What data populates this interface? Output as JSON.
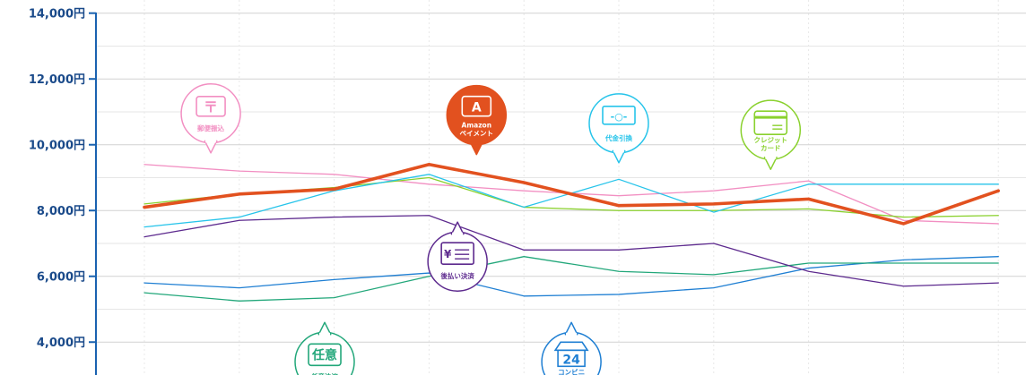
{
  "colors": {
    "axis": "#1a62b0",
    "tick_text": "#1a4a8a",
    "grid_h": "#d8d8d8",
    "grid_v": "#e8e8e8"
  },
  "chart_data": {
    "type": "line",
    "title": "",
    "xlabel": "",
    "ylabel": "",
    "ylim": [
      3000,
      14400
    ],
    "y_ticks": [
      {
        "value": 14000,
        "label": "14,000円"
      },
      {
        "value": 12000,
        "label": "12,000円"
      },
      {
        "value": 10000,
        "label": "10,000円"
      },
      {
        "value": 8000,
        "label": "8,000円"
      },
      {
        "value": 6000,
        "label": "6,000円"
      },
      {
        "value": 4000,
        "label": "4,000円"
      }
    ],
    "x": [
      1,
      2,
      3,
      4,
      5,
      6,
      7,
      8,
      9,
      10
    ],
    "grid": true,
    "series": [
      {
        "name": "郵便振込",
        "color": "#f28fc2",
        "width": 1.3,
        "values": [
          9400,
          9200,
          9100,
          8800,
          8600,
          8450,
          8600,
          8900,
          7700,
          7600
        ],
        "label_lines": [
          "郵便振込"
        ],
        "icon": "postal-mark-icon",
        "bubble_anchor": 1.7,
        "bubble_value": 10950
      },
      {
        "name": "クレジットカード",
        "color": "#8ad12e",
        "width": 1.3,
        "values": [
          8200,
          8500,
          8700,
          9000,
          8100,
          8000,
          8000,
          8050,
          7800,
          7850
        ],
        "label_lines": [
          "クレジット",
          "カード"
        ],
        "icon": "credit-card-icon",
        "bubble_anchor": 7.6,
        "bubble_value": 10450
      },
      {
        "name": "コンビニ支払い",
        "color": "#1f7fd3",
        "width": 1.3,
        "values": [
          5800,
          5650,
          5900,
          6100,
          5400,
          5450,
          5650,
          6250,
          6500,
          6600
        ],
        "label_lines": [
          "コンビニ",
          "支払い"
        ],
        "icon": "convenience-store-24-icon",
        "bubble_anchor": 5.5,
        "bubble_value": 3400
      },
      {
        "name": "代金引換",
        "color": "#27c4ea",
        "width": 1.3,
        "values": [
          7500,
          7800,
          8600,
          9100,
          8100,
          8950,
          7950,
          8800,
          8800,
          8800
        ],
        "label_lines": [
          "代金引換"
        ],
        "icon": "cash-on-delivery-icon",
        "bubble_anchor": 6.0,
        "bubble_value": 10650
      },
      {
        "name": "任意決済",
        "color": "#22a77a",
        "width": 1.3,
        "values": [
          5500,
          5250,
          5350,
          6000,
          6600,
          6150,
          6050,
          6400,
          6400,
          6400
        ],
        "label_lines": [
          "任意決済"
        ],
        "icon": "nin-i-icon",
        "bubble_anchor": 2.9,
        "bubble_value": 3400
      },
      {
        "name": "後払い決済",
        "color": "#5d2a8e",
        "width": 1.3,
        "values": [
          7200,
          7700,
          7800,
          7850,
          6800,
          6800,
          7000,
          6150,
          5700,
          5800
        ],
        "label_lines": [
          "後払い決済"
        ],
        "icon": "invoice-icon",
        "bubble_anchor": 4.3,
        "bubble_value": 6450
      },
      {
        "name": "Amazonペイメント",
        "color": "#e2511f",
        "width": 3.6,
        "values": [
          8100,
          8500,
          8650,
          9400,
          8850,
          8150,
          8200,
          8350,
          7600,
          8600
        ],
        "label_lines": [
          "Amazon",
          "ペイメント"
        ],
        "icon": "amazon-a-icon",
        "bubble_anchor": 4.5,
        "bubble_value": 10900,
        "filled": true
      }
    ]
  },
  "icon_text": {
    "postal": "〒",
    "amazon": "A",
    "cod": "-○-",
    "invoice": "¥",
    "nin_i": "任意",
    "store": "24"
  }
}
